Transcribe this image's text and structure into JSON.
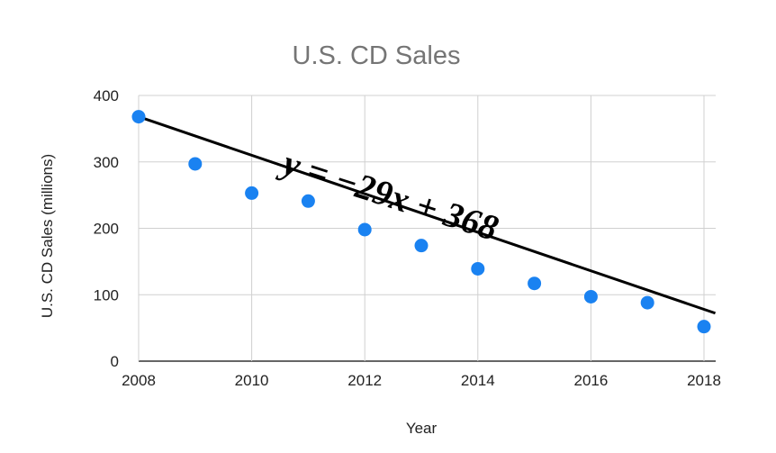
{
  "chart_data": {
    "type": "scatter",
    "title": "U.S. CD Sales",
    "xlabel": "Year",
    "ylabel": "U.S. CD Sales (millions)",
    "xlim": [
      2008,
      2018
    ],
    "ylim": [
      0,
      400
    ],
    "xticks": [
      "2008",
      "2010",
      "2012",
      "2014",
      "2016",
      "2018"
    ],
    "yticks": [
      "0",
      "100",
      "200",
      "300",
      "400"
    ],
    "grid": true,
    "points": [
      {
        "x": 2008,
        "y": 368
      },
      {
        "x": 2009,
        "y": 297
      },
      {
        "x": 2010,
        "y": 253
      },
      {
        "x": 2011,
        "y": 241
      },
      {
        "x": 2012,
        "y": 198
      },
      {
        "x": 2013,
        "y": 174
      },
      {
        "x": 2014,
        "y": 139
      },
      {
        "x": 2015,
        "y": 117
      },
      {
        "x": 2016,
        "y": 97
      },
      {
        "x": 2017,
        "y": 88
      },
      {
        "x": 2018,
        "y": 52
      }
    ],
    "trendline": {
      "slope": -29,
      "intercept": 368,
      "x_start_offset": 0,
      "x_end_offset": 10.2
    },
    "annotation": "y = −29x + 368",
    "point_color": "#1a82f1",
    "line_color": "#000000",
    "grid_color": "#d0d0d0"
  }
}
